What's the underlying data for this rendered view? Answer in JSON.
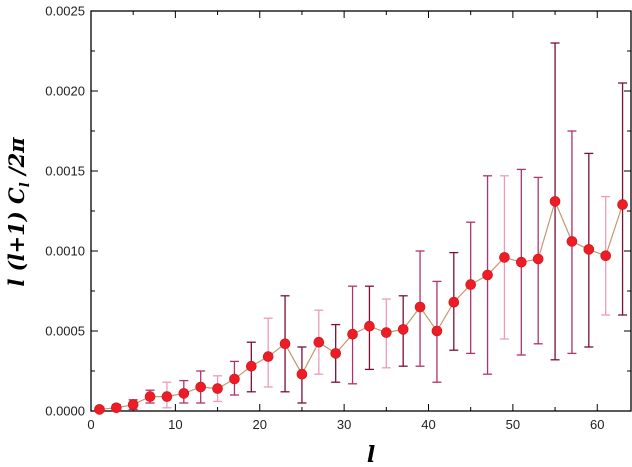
{
  "chart_data": {
    "type": "scatter",
    "xlabel": "l",
    "ylabel": "l (l+1) C_l / 2π",
    "ylabel_parts": {
      "pre": "l (l+1) C",
      "sub": "l",
      "post": " /2π"
    },
    "xlim": [
      0,
      64
    ],
    "ylim": [
      0,
      0.0025
    ],
    "x_ticks": [
      0,
      10,
      20,
      30,
      40,
      50,
      60
    ],
    "x_tick_labels": [
      "0",
      "10",
      "20",
      "30",
      "40",
      "50",
      "60"
    ],
    "y_ticks": [
      0,
      0.0005,
      0.001,
      0.0015,
      0.002,
      0.0025
    ],
    "y_tick_labels": [
      "0.0000",
      "0.0005",
      "0.0010",
      "0.0015",
      "0.0020",
      "0.0025"
    ],
    "grid": false,
    "colors": {
      "marker": "#ee1c24",
      "line": "#c8966e",
      "errorbar_dark": "#7a1038",
      "errorbar_mid": "#b0326e",
      "errorbar_light": "#ea9cbc"
    },
    "series": [
      {
        "x": [
          1,
          3,
          5,
          7,
          9,
          11,
          13,
          15,
          17,
          19,
          21,
          23,
          25,
          27,
          29,
          31,
          33,
          35,
          37,
          39,
          41,
          43,
          45,
          47,
          49,
          51,
          53,
          55,
          57,
          59,
          61,
          63
        ],
        "y": [
          1e-05,
          2e-05,
          4e-05,
          9e-05,
          9e-05,
          0.00011,
          0.00015,
          0.00014,
          0.0002,
          0.00028,
          0.00034,
          0.00042,
          0.00023,
          0.00043,
          0.00036,
          0.00048,
          0.00053,
          0.00049,
          0.00051,
          0.00065,
          0.0005,
          0.00068,
          0.00079,
          0.00085,
          0.00096,
          0.00093,
          0.00095,
          0.00131,
          0.00106,
          0.00101,
          0.00097,
          0.00129
        ],
        "ylow": [
          0.0,
          0.0,
          1e-05,
          5e-05,
          2e-05,
          5e-05,
          5e-05,
          6e-05,
          0.0001,
          0.00012,
          0.00015,
          0.00012,
          5e-05,
          0.00023,
          0.00018,
          0.00017,
          0.00026,
          0.00027,
          0.00028,
          0.00028,
          0.00018,
          0.00038,
          0.00036,
          0.00023,
          0.00045,
          0.00035,
          0.00042,
          0.00032,
          0.00036,
          0.0004,
          0.0006,
          0.0006
        ],
        "yhigh": [
          2e-05,
          4e-05,
          7e-05,
          0.00013,
          0.00018,
          0.00019,
          0.00025,
          0.00022,
          0.00031,
          0.00043,
          0.00058,
          0.00072,
          0.0004,
          0.00063,
          0.00054,
          0.00078,
          0.00078,
          0.0007,
          0.00072,
          0.001,
          0.00081,
          0.00099,
          0.00118,
          0.00147,
          0.00147,
          0.00151,
          0.00146,
          0.0023,
          0.00175,
          0.00161,
          0.00134,
          0.00205
        ],
        "bar_shade": [
          "mid",
          "mid",
          "mid",
          "mid",
          "light",
          "mid",
          "mid",
          "light",
          "mid",
          "dark",
          "light",
          "dark",
          "dark",
          "light",
          "dark",
          "mid",
          "dark",
          "light",
          "dark",
          "mid",
          "mid",
          "dark",
          "mid",
          "mid",
          "light",
          "mid",
          "mid",
          "dark",
          "mid",
          "dark",
          "light",
          "dark"
        ]
      }
    ]
  }
}
